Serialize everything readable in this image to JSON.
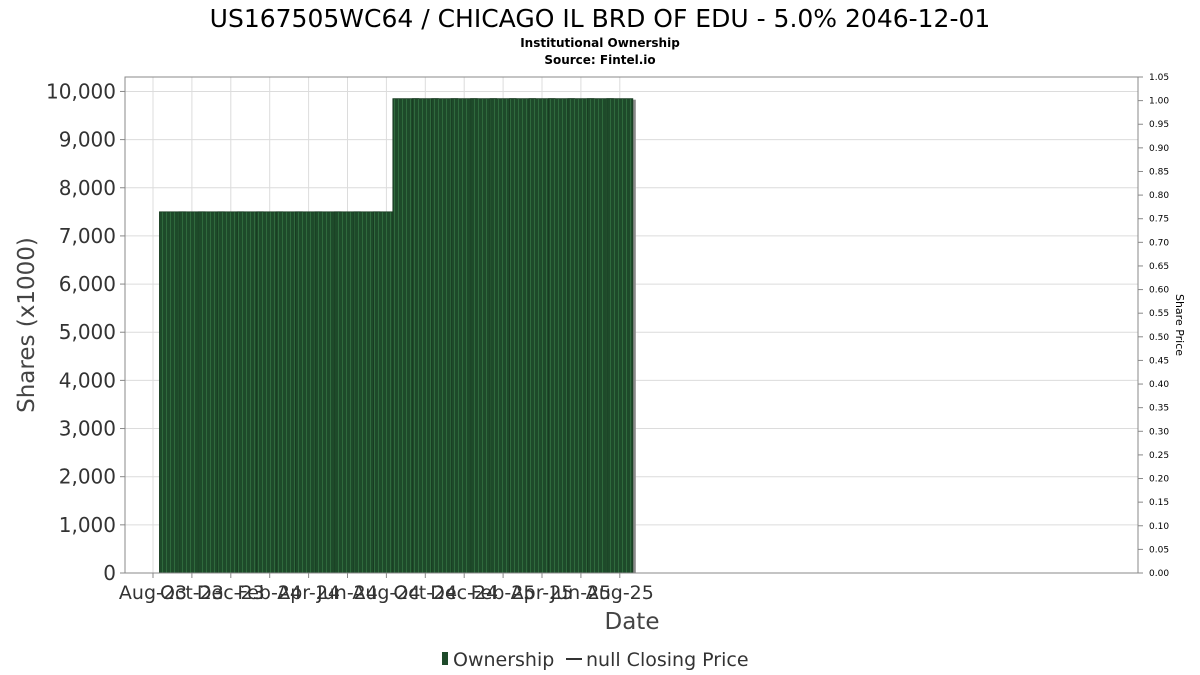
{
  "chart_data": {
    "type": "bar",
    "title": "US167505WC64 / CHICAGO IL BRD OF EDU - 5.0% 2046-12-01",
    "subtitle_lines": [
      "Institutional Ownership",
      "Source: Fintel.io"
    ],
    "xlabel": "Date",
    "ylabel": "Shares (x1000)",
    "y2label": "Share Price",
    "ylim": [
      0,
      10300
    ],
    "y2lim": [
      0,
      1.05
    ],
    "yticks": [
      0,
      1000,
      2000,
      3000,
      4000,
      5000,
      6000,
      7000,
      8000,
      9000,
      10000
    ],
    "ytick_labels": [
      "0",
      "1,000",
      "2,000",
      "3,000",
      "4,000",
      "5,000",
      "6,000",
      "7,000",
      "8,000",
      "9,000",
      "10,000"
    ],
    "y2tick_labels": [
      "0.00",
      "0.05",
      "0.10",
      "0.15",
      "0.20",
      "0.25",
      "0.30",
      "0.35",
      "0.40",
      "0.45",
      "0.50",
      "0.55",
      "0.60",
      "0.65",
      "0.70",
      "0.75",
      "0.80",
      "0.85",
      "0.90",
      "0.95",
      "1.00",
      "1.05"
    ],
    "xtick_labels": [
      "Aug-23",
      "Oct-23",
      "Dec-23",
      "Feb-24",
      "Apr-24",
      "Jun-24",
      "Aug-24",
      "Oct-24",
      "Dec-24",
      "Feb-25",
      "Apr-25",
      "Jun-25",
      "Aug-25"
    ],
    "bar_months": [
      "2023-09",
      "2023-10",
      "2023-11",
      "2023-12",
      "2024-01",
      "2024-02",
      "2024-03",
      "2024-04",
      "2024-05",
      "2024-06",
      "2024-07",
      "2024-08",
      "2024-09",
      "2024-10",
      "2024-11",
      "2024-12",
      "2025-01",
      "2025-02",
      "2025-03",
      "2025-04",
      "2025-05",
      "2025-06",
      "2025-07",
      "2025-08"
    ],
    "series": [
      {
        "name": "Ownership",
        "values": [
          7500,
          7500,
          7500,
          7500,
          7500,
          7500,
          7500,
          7500,
          7500,
          7500,
          7500,
          7500,
          9850,
          9850,
          9850,
          9850,
          9850,
          9850,
          9850,
          9850,
          9850,
          9850,
          9850,
          9850
        ]
      },
      {
        "name": "null Closing Price",
        "values": []
      }
    ],
    "grid": true,
    "legend_position": "bottom",
    "colors": {
      "bar": "#1e4a2a",
      "bar_stripe": "#2d6b3c",
      "bar_shadow": "#8a8a8a",
      "grid": "#dcdcdc",
      "axis": "#888888"
    }
  }
}
